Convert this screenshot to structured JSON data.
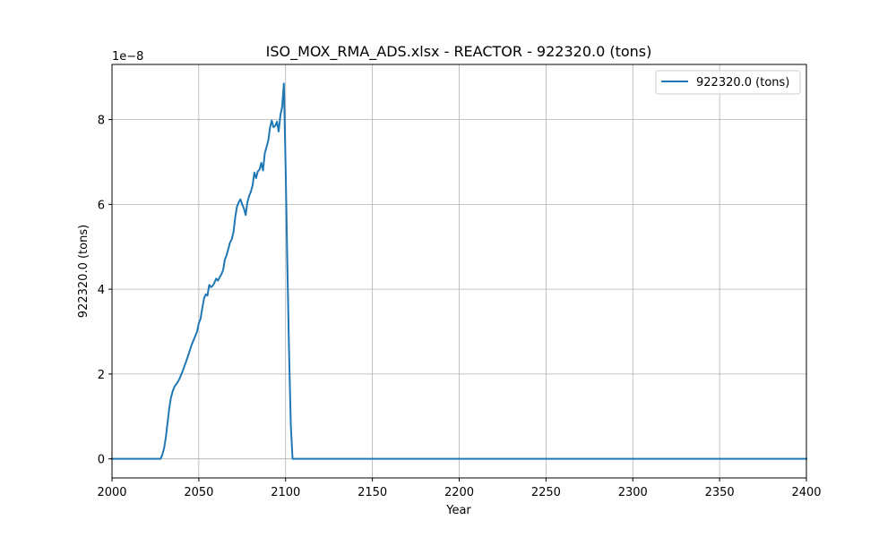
{
  "chart_data": {
    "type": "line",
    "title": "ISO_MOX_RMA_ADS.xlsx - REACTOR - 922320.0 (tons)",
    "xlabel": "Year",
    "ylabel": "922320.0 (tons)",
    "y_offset_text": "1e−8",
    "y_scale_exponent": -8,
    "xlim": [
      2000,
      2400
    ],
    "ylim": [
      -0.45,
      9.3
    ],
    "x_ticks": [
      2000,
      2050,
      2100,
      2150,
      2200,
      2250,
      2300,
      2350,
      2400
    ],
    "y_ticks": [
      0,
      2,
      4,
      6,
      8
    ],
    "grid": true,
    "legend_position": "top-right",
    "series": [
      {
        "name": "922320.0 (tons)",
        "color": "#1f77b4",
        "x": [
          2000,
          2028,
          2029,
          2030,
          2031,
          2032,
          2033,
          2034,
          2035,
          2036,
          2037,
          2038,
          2039,
          2040,
          2041,
          2042,
          2043,
          2044,
          2045,
          2046,
          2047,
          2048,
          2049,
          2050,
          2051,
          2052,
          2053,
          2054,
          2055,
          2056,
          2057,
          2058,
          2059,
          2060,
          2061,
          2062,
          2063,
          2064,
          2065,
          2066,
          2067,
          2068,
          2069,
          2070,
          2071,
          2072,
          2073,
          2074,
          2075,
          2076,
          2077,
          2078,
          2079,
          2080,
          2081,
          2082,
          2083,
          2084,
          2085,
          2086,
          2087,
          2088,
          2089,
          2090,
          2091,
          2092,
          2093,
          2094,
          2095,
          2096,
          2097,
          2098,
          2099,
          2100,
          2101,
          2102,
          2103,
          2104,
          2105,
          2106,
          2400
        ],
        "values": [
          0,
          0,
          0.1,
          0.25,
          0.5,
          0.85,
          1.2,
          1.45,
          1.6,
          1.7,
          1.76,
          1.82,
          1.9,
          2.0,
          2.1,
          2.22,
          2.33,
          2.45,
          2.58,
          2.7,
          2.8,
          2.9,
          3.0,
          3.2,
          3.3,
          3.55,
          3.78,
          3.88,
          3.85,
          4.1,
          4.05,
          4.08,
          4.15,
          4.25,
          4.2,
          4.28,
          4.35,
          4.45,
          4.7,
          4.8,
          4.95,
          5.1,
          5.18,
          5.35,
          5.7,
          5.95,
          6.05,
          6.12,
          6.0,
          5.9,
          5.75,
          6.05,
          6.2,
          6.3,
          6.45,
          6.75,
          6.62,
          6.78,
          6.82,
          6.98,
          6.8,
          7.2,
          7.35,
          7.5,
          7.8,
          7.98,
          7.82,
          7.85,
          7.95,
          7.72,
          8.1,
          8.3,
          8.85,
          6.9,
          4.6,
          2.5,
          0.8,
          0,
          0,
          0,
          0
        ]
      }
    ]
  }
}
